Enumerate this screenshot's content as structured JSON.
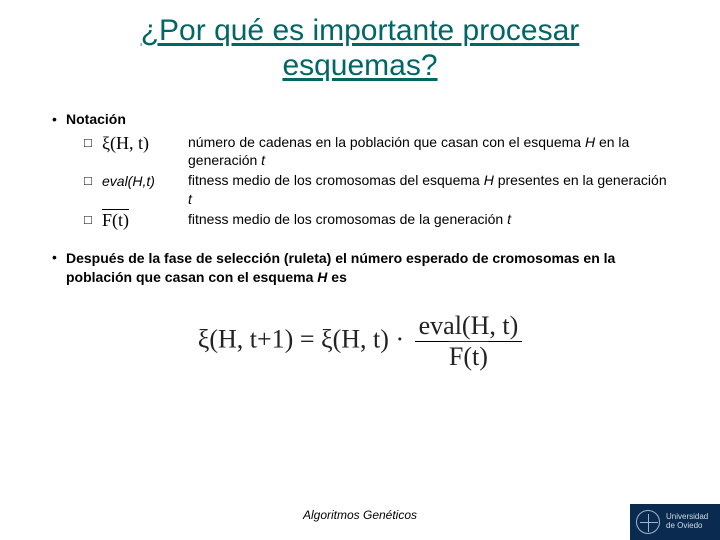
{
  "title_line1": "¿Por qué es importante procesar",
  "title_line2": "esquemas?",
  "bullet1": "Notación",
  "notation": [
    {
      "symbolHtml": "ξ(H, t)",
      "descHtml": "número de cadenas en la población que casan con el esquema <i>H</i> en la generación <i>t</i>"
    },
    {
      "symbolHtml": "eval(H,t)",
      "symbolItalic": true,
      "descHtml": "fitness medio de los cromosomas del esquema <i>H</i>  presentes en la generación <i>t</i>"
    },
    {
      "symbolHtml": "<span class='overline'>F(t)</span>",
      "descHtml": "fitness medio de los cromosomas de la generación <i>t</i>"
    }
  ],
  "bullet2Html": "Después de la fase de selección (ruleta) el número esperado de cromosomas en la población que casan con el esquema <i>H</i> es",
  "equation": {
    "lhs": "ξ(H, t+1)",
    "rhs1": "ξ(H, t)",
    "fracNum": "eval(H, t)",
    "fracDen": "F(t)"
  },
  "footer": "Algoritmos Genéticos",
  "logo": {
    "line1": "Universidad",
    "line2": "de Oviedo"
  },
  "colors": {
    "title": "#006666",
    "logoBg": "#0a2a4f"
  }
}
